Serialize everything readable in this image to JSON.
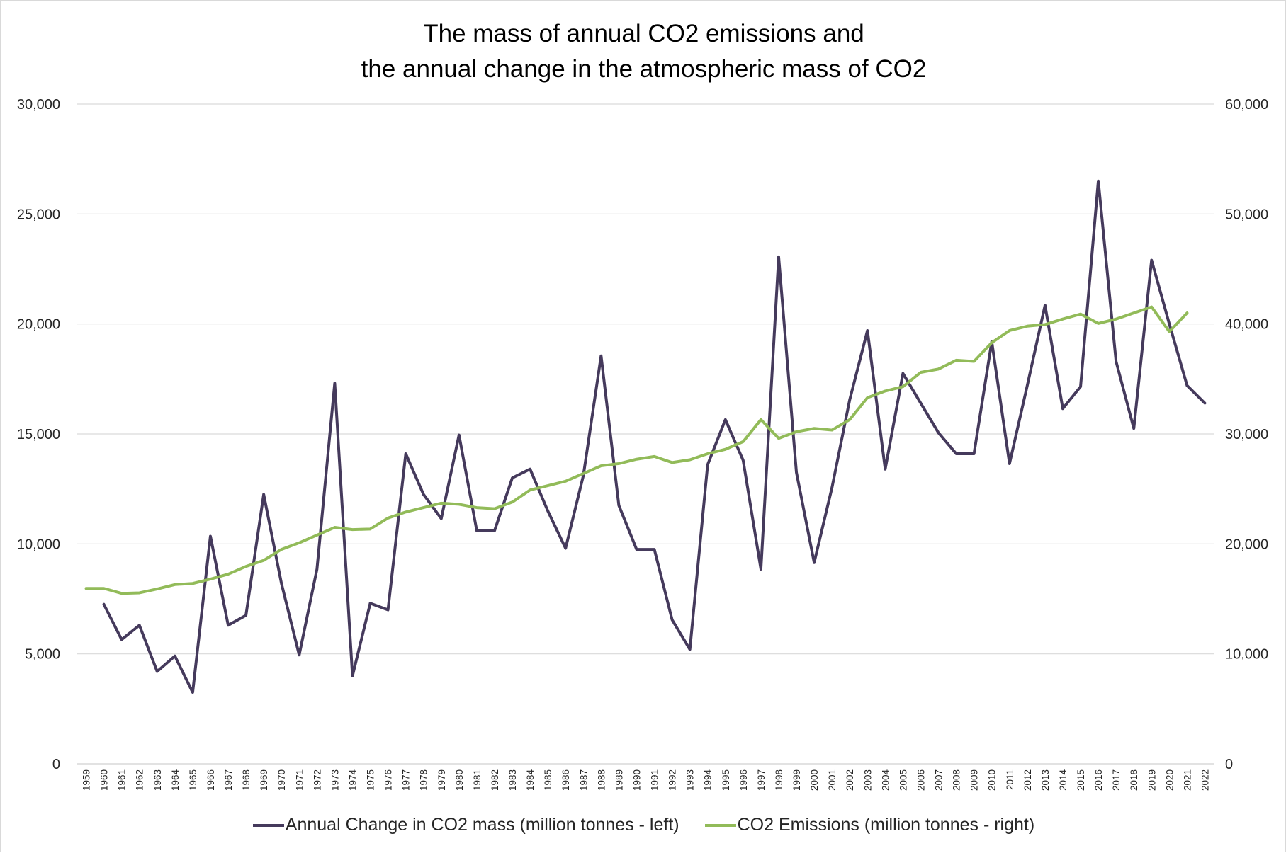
{
  "chart_data": {
    "type": "line",
    "title": [
      "The mass of annual CO2 emissions and",
      "the annual change in the atmospheric mass of CO2"
    ],
    "x": [
      1959,
      1960,
      1961,
      1962,
      1963,
      1964,
      1965,
      1966,
      1967,
      1968,
      1969,
      1970,
      1971,
      1972,
      1973,
      1974,
      1975,
      1976,
      1977,
      1978,
      1979,
      1980,
      1981,
      1982,
      1983,
      1984,
      1985,
      1986,
      1987,
      1988,
      1989,
      1990,
      1991,
      1992,
      1993,
      1994,
      1995,
      1996,
      1997,
      1998,
      1999,
      2000,
      2001,
      2002,
      2003,
      2004,
      2005,
      2006,
      2007,
      2008,
      2009,
      2010,
      2011,
      2012,
      2013,
      2014,
      2015,
      2016,
      2017,
      2018,
      2019,
      2020,
      2021,
      2022
    ],
    "x_tick_labels": [
      "1959",
      "1960",
      "1961",
      "1962",
      "1963",
      "1964",
      "1965",
      "1966",
      "1967",
      "1968",
      "1969",
      "1970",
      "1971",
      "1972",
      "1973",
      "1974",
      "1975",
      "1976",
      "1977",
      "1978",
      "1979",
      "1980",
      "1981",
      "1982",
      "1983",
      "1984",
      "1985",
      "1986",
      "1987",
      "1988",
      "1989",
      "1990",
      "1991",
      "1992",
      "1993",
      "1994",
      "1995",
      "1996",
      "1997",
      "1998",
      "1999",
      "2000",
      "2001",
      "2002",
      "2003",
      "2004",
      "2005",
      "2006",
      "2007",
      "2008",
      "2009",
      "2010",
      "2011",
      "2012",
      "2013",
      "2014",
      "2015",
      "2016",
      "2017",
      "2018",
      "2019",
      "2020",
      "2021",
      "2022"
    ],
    "y_left": {
      "range": [
        0,
        30000
      ],
      "ticks": [
        0,
        5000,
        10000,
        15000,
        20000,
        25000,
        30000
      ],
      "tick_labels": [
        "0",
        "5,000",
        "10,000",
        "15,000",
        "20,000",
        "25,000",
        "30,000"
      ]
    },
    "y_right": {
      "range": [
        0,
        60000
      ],
      "ticks": [
        0,
        10000,
        20000,
        30000,
        40000,
        50000,
        60000
      ],
      "tick_labels": [
        "0",
        "10,000",
        "20,000",
        "30,000",
        "40,000",
        "50,000",
        "60,000"
      ]
    },
    "grid": true,
    "legend_position": "bottom",
    "series": [
      {
        "name": "Annual Change in CO2 mass (million tonnes - left)",
        "axis": "left",
        "color": "#453a5c",
        "values": [
          null,
          7250,
          5650,
          6300,
          4200,
          4900,
          3250,
          10350,
          6300,
          6750,
          12250,
          8200,
          4950,
          8850,
          17300,
          4000,
          7300,
          7000,
          14100,
          12250,
          11150,
          14950,
          10600,
          10600,
          13000,
          13400,
          11500,
          9800,
          13100,
          18550,
          11750,
          9750,
          9750,
          6550,
          5200,
          13600,
          15650,
          13800,
          8850,
          23050,
          13250,
          9150,
          12550,
          16550,
          19700,
          13400,
          17750,
          16400,
          15050,
          14100,
          14100,
          19200,
          13650,
          17200,
          20850,
          16150,
          17150,
          26500,
          18300,
          15250,
          22900,
          20000,
          17200,
          16400
        ]
      },
      {
        "name": "CO2 Emissions (million tonnes - right)",
        "axis": "right",
        "color": "#92bb59",
        "values": [
          15950,
          15950,
          15500,
          15550,
          15900,
          16300,
          16400,
          16800,
          17250,
          17950,
          18500,
          19500,
          20100,
          20800,
          21500,
          21300,
          21350,
          22350,
          22900,
          23300,
          23700,
          23600,
          23300,
          23200,
          23800,
          24900,
          25300,
          25700,
          26400,
          27100,
          27300,
          27700,
          27950,
          27400,
          27650,
          28200,
          28600,
          29300,
          31300,
          29600,
          30200,
          30500,
          30350,
          31300,
          33300,
          33900,
          34300,
          35600,
          35900,
          36700,
          36600,
          38300,
          39400,
          39800,
          39950,
          40450,
          40900,
          40050,
          40450,
          41000,
          41550,
          39300,
          41000,
          null
        ]
      }
    ]
  }
}
